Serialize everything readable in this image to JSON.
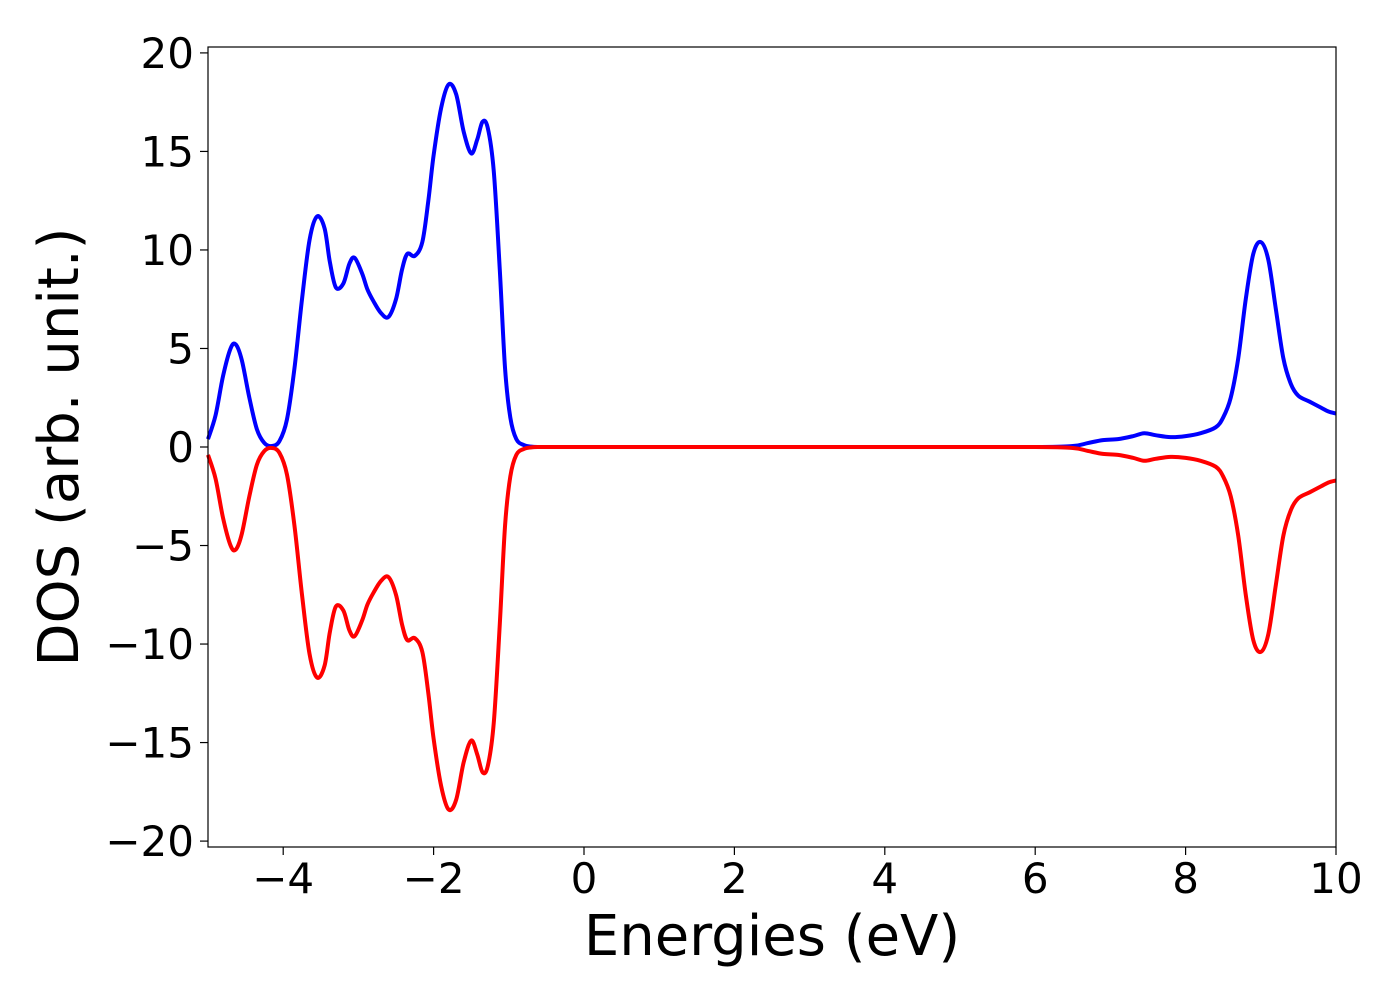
{
  "chart_data": {
    "type": "line",
    "title": "",
    "xlabel": "Energies (eV)",
    "ylabel": "DOS (arb. unit.)",
    "xlim": [
      -5,
      10
    ],
    "ylim": [
      -20.3,
      20.3
    ],
    "xticks": [
      -4,
      -2,
      0,
      2,
      4,
      6,
      8,
      10
    ],
    "xtick_labels": [
      "−4",
      "−2",
      "0",
      "2",
      "4",
      "6",
      "8",
      "10"
    ],
    "yticks": [
      -20,
      -15,
      -10,
      -5,
      0,
      5,
      10,
      15,
      20
    ],
    "ytick_labels": [
      "−20",
      "−15",
      "−10",
      "−5",
      "0",
      "5",
      "10",
      "15",
      "20"
    ],
    "grid": false,
    "legend": "none",
    "series": [
      {
        "color": "#0000ff",
        "x": [
          -5.0,
          -4.9,
          -4.8,
          -4.7,
          -4.63,
          -4.55,
          -4.45,
          -4.35,
          -4.25,
          -4.15,
          -4.05,
          -3.95,
          -3.85,
          -3.75,
          -3.65,
          -3.55,
          -3.45,
          -3.38,
          -3.3,
          -3.2,
          -3.12,
          -3.05,
          -2.95,
          -2.88,
          -2.8,
          -2.7,
          -2.6,
          -2.5,
          -2.42,
          -2.35,
          -2.25,
          -2.15,
          -2.07,
          -2.0,
          -1.9,
          -1.8,
          -1.7,
          -1.6,
          -1.5,
          -1.42,
          -1.35,
          -1.28,
          -1.2,
          -1.12,
          -1.05,
          -0.98,
          -0.9,
          -0.8,
          -0.7,
          -0.6,
          -0.5,
          -0.4,
          -0.2,
          0,
          2,
          4,
          6,
          6.5,
          6.7,
          6.9,
          7.1,
          7.3,
          7.45,
          7.6,
          7.8,
          8.0,
          8.2,
          8.4,
          8.5,
          8.6,
          8.7,
          8.8,
          8.9,
          9.0,
          9.1,
          9.2,
          9.3,
          9.4,
          9.5,
          9.65,
          9.8,
          9.9,
          10.0
        ],
        "y": [
          0.4,
          1.6,
          3.6,
          5.0,
          5.2,
          4.4,
          2.5,
          0.9,
          0.2,
          0.05,
          0.3,
          1.4,
          4.0,
          7.5,
          10.5,
          11.7,
          11.1,
          9.4,
          8.1,
          8.3,
          9.3,
          9.6,
          8.8,
          8.0,
          7.4,
          6.8,
          6.6,
          7.5,
          9.0,
          9.8,
          9.7,
          10.4,
          12.5,
          14.8,
          17.2,
          18.4,
          17.9,
          16.0,
          14.9,
          15.6,
          16.5,
          16.2,
          14.0,
          9.0,
          4.0,
          1.5,
          0.4,
          0.1,
          0.02,
          0,
          0,
          0,
          0,
          0,
          0,
          0,
          0,
          0.05,
          0.2,
          0.35,
          0.4,
          0.55,
          0.7,
          0.6,
          0.5,
          0.55,
          0.7,
          1.0,
          1.5,
          2.5,
          4.5,
          7.5,
          9.8,
          10.4,
          9.5,
          7.0,
          4.5,
          3.2,
          2.6,
          2.3,
          2.0,
          1.8,
          1.7
        ]
      },
      {
        "color": "#ff0000",
        "x": [
          -5.0,
          -4.9,
          -4.8,
          -4.7,
          -4.63,
          -4.55,
          -4.45,
          -4.35,
          -4.25,
          -4.15,
          -4.05,
          -3.95,
          -3.85,
          -3.75,
          -3.65,
          -3.55,
          -3.45,
          -3.38,
          -3.3,
          -3.2,
          -3.12,
          -3.05,
          -2.95,
          -2.88,
          -2.8,
          -2.7,
          -2.6,
          -2.5,
          -2.42,
          -2.35,
          -2.25,
          -2.15,
          -2.07,
          -2.0,
          -1.9,
          -1.8,
          -1.7,
          -1.6,
          -1.5,
          -1.42,
          -1.35,
          -1.28,
          -1.2,
          -1.12,
          -1.05,
          -0.98,
          -0.9,
          -0.8,
          -0.7,
          -0.6,
          -0.5,
          -0.4,
          -0.2,
          0,
          2,
          4,
          6,
          6.5,
          6.7,
          6.9,
          7.1,
          7.3,
          7.45,
          7.6,
          7.8,
          8.0,
          8.2,
          8.4,
          8.5,
          8.6,
          8.7,
          8.8,
          8.9,
          9.0,
          9.1,
          9.2,
          9.3,
          9.4,
          9.5,
          9.65,
          9.8,
          9.9,
          10.0
        ],
        "y": [
          -0.4,
          -1.6,
          -3.6,
          -5.0,
          -5.2,
          -4.4,
          -2.5,
          -0.9,
          -0.2,
          -0.05,
          -0.3,
          -1.4,
          -4.0,
          -7.5,
          -10.5,
          -11.7,
          -11.1,
          -9.4,
          -8.1,
          -8.3,
          -9.3,
          -9.6,
          -8.8,
          -8.0,
          -7.4,
          -6.8,
          -6.6,
          -7.5,
          -9.0,
          -9.8,
          -9.7,
          -10.4,
          -12.5,
          -14.8,
          -17.2,
          -18.4,
          -17.9,
          -16.0,
          -14.9,
          -15.6,
          -16.5,
          -16.2,
          -14.0,
          -9.0,
          -4.0,
          -1.5,
          -0.4,
          -0.1,
          -0.02,
          0,
          0,
          0,
          0,
          0,
          0,
          0,
          0,
          -0.05,
          -0.2,
          -0.35,
          -0.4,
          -0.55,
          -0.7,
          -0.6,
          -0.5,
          -0.55,
          -0.7,
          -1.0,
          -1.5,
          -2.5,
          -4.5,
          -7.5,
          -9.8,
          -10.4,
          -9.5,
          -7.0,
          -4.5,
          -3.2,
          -2.6,
          -2.3,
          -2.0,
          -1.8,
          -1.7
        ]
      }
    ]
  }
}
